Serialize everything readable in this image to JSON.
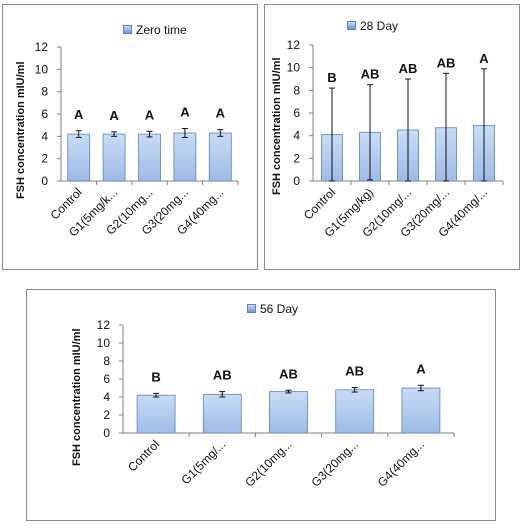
{
  "chart_data": [
    {
      "type": "bar",
      "legend": "Zero time",
      "ylabel": "FSH concentration mIU/ml",
      "ylim": [
        0,
        12
      ],
      "yticks": [
        0,
        2,
        4,
        6,
        8,
        10,
        12
      ],
      "categories": [
        "Control",
        "G1(5mg/k...",
        "G2(10mg...",
        "G3(20mg...",
        "G4(40mg..."
      ],
      "values": [
        4.2,
        4.2,
        4.2,
        4.3,
        4.3
      ],
      "errors": [
        0.3,
        0.2,
        0.25,
        0.4,
        0.3
      ],
      "letters": [
        "A",
        "A",
        "A",
        "A",
        "A"
      ],
      "bar_color": "#9dbbe6",
      "bar_edge": "#5c84bf"
    },
    {
      "type": "bar",
      "legend": "28 Day",
      "ylabel": "FSH concentration mIU/ml",
      "ylim": [
        0,
        12
      ],
      "yticks": [
        0,
        2,
        4,
        6,
        8,
        10,
        12
      ],
      "categories": [
        "Control",
        "G1(5mg/kg)",
        "G2(10mg/...",
        "G3(20mg/...",
        "G4(40mg/..."
      ],
      "values": [
        4.1,
        4.3,
        4.5,
        4.7,
        4.9
      ],
      "errors": [
        4.1,
        4.2,
        4.5,
        4.8,
        5.0
      ],
      "letters": [
        "B",
        "AB",
        "AB",
        "AB",
        "A"
      ],
      "bar_color": "#9dbbe6",
      "bar_edge": "#5c84bf"
    },
    {
      "type": "bar",
      "legend": "56 Day",
      "ylabel": "FSH concentration mIU/ml",
      "ylim": [
        0,
        12
      ],
      "yticks": [
        0,
        2,
        4,
        6,
        8,
        10,
        12
      ],
      "categories": [
        "Control",
        "G1(5mg/...",
        "G2(10mg...",
        "G3(20mg...",
        "G4(40mg..."
      ],
      "values": [
        4.2,
        4.3,
        4.6,
        4.8,
        5.0
      ],
      "errors": [
        0.2,
        0.3,
        0.15,
        0.25,
        0.3
      ],
      "letters": [
        "B",
        "AB",
        "AB",
        "AB",
        "A"
      ],
      "bar_color": "#9dbbe6",
      "bar_edge": "#5c84bf"
    }
  ]
}
